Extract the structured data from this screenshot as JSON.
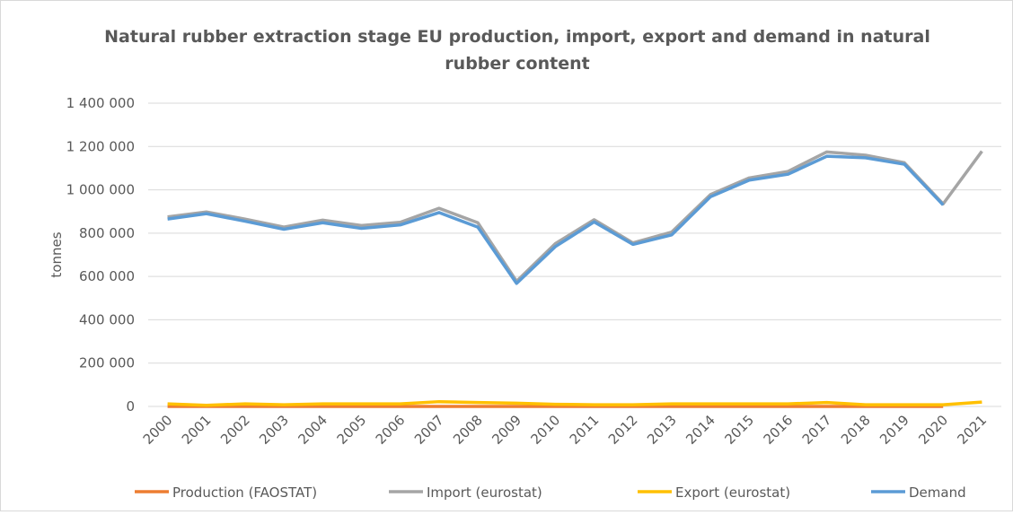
{
  "chart_data": {
    "type": "line",
    "title": "Natural rubber extraction stage EU production, import, export and demand in natural rubber content",
    "y_label": "tonnes",
    "categories": [
      "2000",
      "2001",
      "2002",
      "2003",
      "2004",
      "2005",
      "2006",
      "2007",
      "2008",
      "2009",
      "2010",
      "2011",
      "2012",
      "2013",
      "2014",
      "2015",
      "2016",
      "2017",
      "2018",
      "2019",
      "2020",
      "2021"
    ],
    "series": [
      {
        "name": "Production (FAOSTAT)",
        "color": "#ed7d31",
        "values": [
          0,
          0,
          0,
          0,
          0,
          0,
          0,
          0,
          0,
          0,
          0,
          0,
          0,
          0,
          0,
          0,
          0,
          0,
          0,
          0,
          0,
          null
        ]
      },
      {
        "name": "Import (eurostat)",
        "color": "#a5a5a5",
        "values": [
          875000,
          898000,
          865000,
          828000,
          860000,
          835000,
          850000,
          915000,
          848000,
          578000,
          752000,
          862000,
          755000,
          805000,
          978000,
          1055000,
          1085000,
          1175000,
          1160000,
          1125000,
          935000,
          1178000
        ]
      },
      {
        "name": "Export (eurostat)",
        "color": "#ffc000",
        "values": [
          12000,
          5000,
          12000,
          8000,
          12000,
          12000,
          12000,
          22000,
          18000,
          15000,
          10000,
          8000,
          8000,
          12000,
          12000,
          12000,
          12000,
          18000,
          8000,
          8000,
          8000,
          20000
        ]
      },
      {
        "name": "Demand",
        "color": "#5b9bd5",
        "values": [
          865000,
          890000,
          855000,
          818000,
          848000,
          822000,
          838000,
          895000,
          828000,
          568000,
          738000,
          852000,
          748000,
          792000,
          968000,
          1045000,
          1072000,
          1155000,
          1148000,
          1118000,
          930000,
          null
        ]
      }
    ],
    "ylim": [
      0,
      1400000
    ],
    "yticks": [
      0,
      {
        "value": 200000,
        "label": "200 000"
      },
      {
        "value": 400000,
        "label": "400 000"
      },
      {
        "value": 600000,
        "label": "600 000"
      },
      {
        "value": 800000,
        "label": "800 000"
      },
      {
        "value": 1000000,
        "label": "1 000 000"
      },
      {
        "value": 1200000,
        "label": "1 200 000"
      },
      {
        "value": 1400000,
        "label": "1 400 000"
      }
    ],
    "grid": true,
    "legend": "bottom"
  }
}
